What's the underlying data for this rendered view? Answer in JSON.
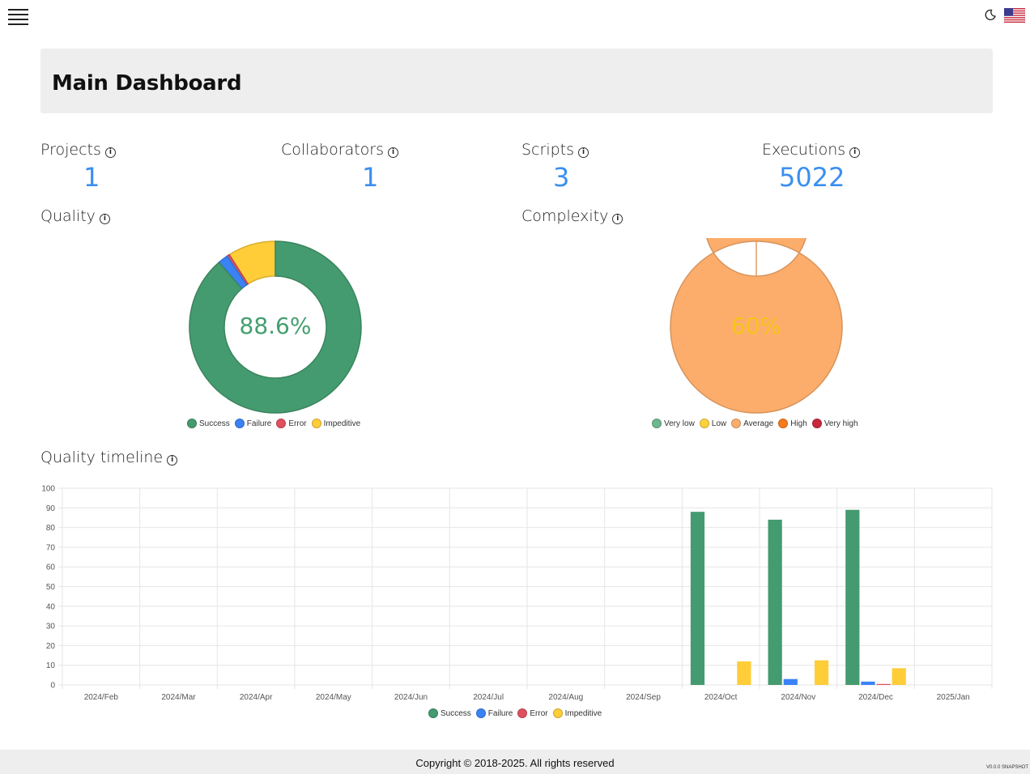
{
  "header": {
    "title": "Main Dashboard"
  },
  "topbar": {
    "menu_icon": "hamburger-icon",
    "theme_icon": "moon-icon",
    "language_icon": "us-flag-icon"
  },
  "stats": [
    {
      "label": "Projects",
      "value": "1"
    },
    {
      "label": "Collaborators",
      "value": "1"
    },
    {
      "label": "Scripts",
      "value": "3"
    },
    {
      "label": "Executions",
      "value": "5022"
    }
  ],
  "info_icon": "i",
  "quality": {
    "title": "Quality",
    "center_text": "88.6%",
    "center_color": "#44a06f"
  },
  "complexity": {
    "title": "Complexity",
    "center_text": "60%",
    "center_color": "#f5c518"
  },
  "timeline": {
    "title": "Quality timeline"
  },
  "colors": {
    "success": "#449b6f",
    "failure": "#3b82f6",
    "error": "#e0505e",
    "impeditive": "#ffcd38",
    "very_low": "#6db88f",
    "low": "#ffd23c",
    "average": "#fdad6b",
    "high": "#f97a1a",
    "very_high": "#c8283c",
    "stat_value": "#3b8ff0"
  },
  "chart_data": [
    {
      "type": "pie",
      "variant": "donut",
      "title": "",
      "labels": [
        "Success",
        "Failure",
        "Error",
        "Impeditive"
      ],
      "values": [
        88.6,
        1.9,
        0.5,
        9.0
      ],
      "colors": [
        "#449b6f",
        "#3b82f6",
        "#e0505e",
        "#ffcd38"
      ],
      "center_label": "88.6%",
      "legend": "bottom"
    },
    {
      "type": "pie",
      "variant": "donut",
      "title": "",
      "labels": [
        "Very low",
        "Low",
        "Average",
        "High",
        "Very high"
      ],
      "values": [
        0,
        0,
        100,
        0,
        0
      ],
      "colors": [
        "#6db88f",
        "#ffd23c",
        "#fdad6b",
        "#f97a1a",
        "#c8283c"
      ],
      "center_label": "60%",
      "legend": "bottom"
    },
    {
      "type": "bar",
      "title": "",
      "categories": [
        "2024/Feb",
        "2024/Mar",
        "2024/Apr",
        "2024/May",
        "2024/Jun",
        "2024/Jul",
        "2024/Aug",
        "2024/Sep",
        "2024/Oct",
        "2024/Nov",
        "2024/Dec",
        "2025/Jan"
      ],
      "series": [
        {
          "name": "Success",
          "color": "#449b6f",
          "values": [
            0,
            0,
            0,
            0,
            0,
            0,
            0,
            0,
            88,
            84,
            89,
            0
          ]
        },
        {
          "name": "Failure",
          "color": "#3b82f6",
          "values": [
            0,
            0,
            0,
            0,
            0,
            0,
            0,
            0,
            0,
            3,
            1.7,
            0
          ]
        },
        {
          "name": "Error",
          "color": "#e0505e",
          "values": [
            0,
            0,
            0,
            0,
            0,
            0,
            0,
            0,
            0,
            0,
            0.5,
            0
          ]
        },
        {
          "name": "Impeditive",
          "color": "#ffcd38",
          "values": [
            0,
            0,
            0,
            0,
            0,
            0,
            0,
            0,
            12,
            12.5,
            8.5,
            0
          ]
        }
      ],
      "yticks": [
        0,
        10,
        20,
        30,
        40,
        50,
        60,
        70,
        80,
        90,
        100
      ],
      "ylim": [
        0,
        100
      ],
      "grid": true,
      "legend": "bottom"
    }
  ],
  "footer": {
    "copyright": "Copyright © 2018-2025. All rights reserved",
    "version": "V0.0.0 SNAPSHOT"
  }
}
